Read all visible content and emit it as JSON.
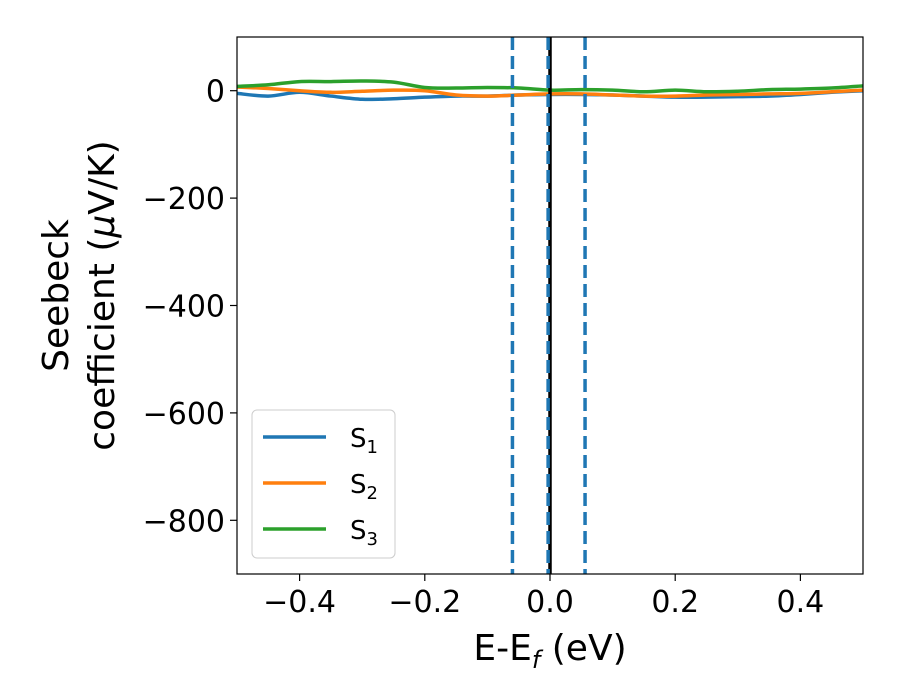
{
  "chart_data": {
    "type": "line",
    "xlabel": "E-E",
    "xlabel_sub": "f",
    "xlabel_unit": " (eV)",
    "ylabel_line1": "Seebeck",
    "ylabel_line2_prefix": "coefficient  (",
    "ylabel_mu": "μ",
    "ylabel_line2_suffix": "V/K)",
    "xlim": [
      -0.5,
      0.5
    ],
    "ylim": [
      -900,
      100
    ],
    "xticks": [
      -0.4,
      -0.2,
      0.0,
      0.2,
      0.4
    ],
    "xtick_labels": [
      "−0.4",
      "−0.2",
      "0.0",
      "0.2",
      "0.4"
    ],
    "yticks": [
      0,
      -200,
      -400,
      -600,
      -800
    ],
    "ytick_labels": [
      "0",
      "−200",
      "−400",
      "−600",
      "−800"
    ],
    "grid": false,
    "legend_position": "lower-left",
    "vlines": [
      {
        "x": 0.0,
        "style": "solid",
        "color": "#000000"
      },
      {
        "x": -0.06,
        "style": "dashed",
        "color": "#1f77b4"
      },
      {
        "x": -0.003,
        "style": "dashed",
        "color": "#1f77b4"
      },
      {
        "x": 0.056,
        "style": "dashed",
        "color": "#1f77b4"
      }
    ],
    "series": [
      {
        "name": "S",
        "sub": "1",
        "color": "#1f77b4",
        "x": [
          -0.5,
          -0.45,
          -0.4,
          -0.35,
          -0.3,
          -0.25,
          -0.2,
          -0.15,
          -0.1,
          -0.05,
          0.0,
          0.05,
          0.1,
          0.15,
          0.2,
          0.25,
          0.3,
          0.35,
          0.4,
          0.45,
          0.5
        ],
        "y": [
          -5,
          -10,
          -3,
          -10,
          -16,
          -15,
          -12,
          -10,
          -10,
          -8,
          -7,
          -7,
          -8,
          -10,
          -12,
          -12,
          -11,
          -10,
          -7,
          -3,
          0
        ]
      },
      {
        "name": "S",
        "sub": "2",
        "color": "#ff7f0e",
        "x": [
          -0.5,
          -0.45,
          -0.4,
          -0.35,
          -0.3,
          -0.25,
          -0.2,
          -0.15,
          -0.1,
          -0.05,
          0.0,
          0.05,
          0.1,
          0.15,
          0.2,
          0.25,
          0.3,
          0.35,
          0.4,
          0.45,
          0.5
        ],
        "y": [
          7,
          4,
          0,
          -3,
          -1,
          1,
          0,
          -8,
          -10,
          -8,
          -6,
          -6,
          -8,
          -10,
          -10,
          -8,
          -7,
          -6,
          -5,
          -2,
          1
        ]
      },
      {
        "name": "S",
        "sub": "3",
        "color": "#2ca02c",
        "x": [
          -0.5,
          -0.45,
          -0.4,
          -0.35,
          -0.3,
          -0.25,
          -0.2,
          -0.15,
          -0.1,
          -0.05,
          0.0,
          0.05,
          0.1,
          0.15,
          0.2,
          0.25,
          0.3,
          0.35,
          0.4,
          0.45,
          0.5
        ],
        "y": [
          8,
          11,
          17,
          17,
          18,
          16,
          6,
          5,
          6,
          5,
          1,
          2,
          1,
          -2,
          1,
          -2,
          -1,
          2,
          3,
          5,
          9
        ]
      }
    ]
  }
}
